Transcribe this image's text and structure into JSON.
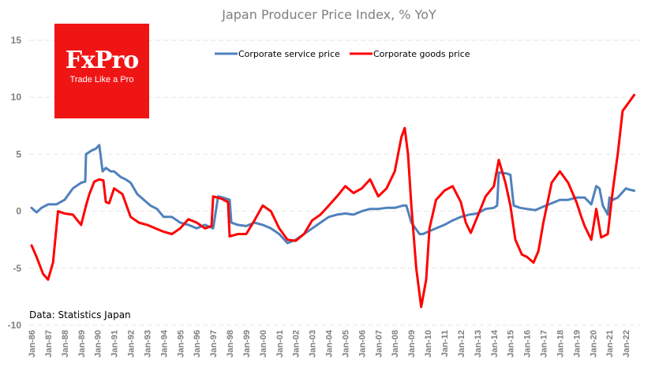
{
  "chart_data": {
    "type": "line",
    "title": "Japan Producer Price Index, % YoY",
    "xlabel": "",
    "ylabel": "",
    "ylim": [
      -10,
      15
    ],
    "yticks": [
      15,
      10,
      5,
      0,
      -5,
      -10
    ],
    "ytick_labels": [
      "15",
      "10",
      "5",
      "0",
      "-5",
      "-10"
    ],
    "xtick_labels": [
      "Jan-86",
      "Jan-87",
      "Jan-88",
      "Jan-89",
      "Jan-90",
      "Jan-91",
      "Jan-92",
      "Jan-93",
      "Jan-94",
      "Jan-95",
      "Jan-96",
      "Jan-97",
      "Jan-98",
      "Jan-99",
      "Jan-00",
      "Jan-01",
      "Jan-02",
      "Jan-03",
      "Jan-04",
      "Jan-05",
      "Jan-06",
      "Jan-07",
      "Jan-08",
      "Jan-09",
      "Jan-10",
      "Jan-11",
      "Jan-12",
      "Jan-13",
      "Jan-14",
      "Jan-15",
      "Jan-16",
      "Jan-17",
      "Jan-18",
      "Jan-19",
      "Jan-20",
      "Jan-21",
      "Jan-22"
    ],
    "xlim": [
      1986.0,
      2022.6
    ],
    "grid": true,
    "legend_position": "top-center",
    "source_note": "Data: Statistics Japan",
    "series": [
      {
        "name": "Corporate service price",
        "color": "#4f81bd",
        "x": [
          1986.0,
          1986.3,
          1986.6,
          1987.0,
          1987.5,
          1988.0,
          1988.5,
          1989.0,
          1989.25,
          1989.3,
          1989.6,
          1989.9,
          1990.1,
          1990.3,
          1990.5,
          1990.8,
          1991.0,
          1991.4,
          1991.7,
          1992.0,
          1992.4,
          1992.8,
          1993.2,
          1993.6,
          1994.0,
          1994.5,
          1995.0,
          1995.5,
          1996.0,
          1996.5,
          1997.0,
          1997.3,
          1997.6,
          1998.0,
          1998.1,
          1998.5,
          1999.0,
          1999.5,
          2000.0,
          2000.5,
          2001.0,
          2001.5,
          2002.0,
          2002.5,
          2003.0,
          2003.5,
          2004.0,
          2004.5,
          2005.0,
          2005.5,
          2006.0,
          2006.5,
          2007.0,
          2007.5,
          2008.0,
          2008.5,
          2008.7,
          2009.0,
          2009.5,
          2009.7,
          2010.0,
          2010.5,
          2011.0,
          2011.5,
          2012.0,
          2012.5,
          2013.0,
          2013.5,
          2014.0,
          2014.2,
          2014.3,
          2014.8,
          2015.0,
          2015.2,
          2015.6,
          2016.0,
          2016.5,
          2017.0,
          2017.5,
          2018.0,
          2018.5,
          2019.0,
          2019.5,
          2019.9,
          2020.2,
          2020.4,
          2020.6,
          2020.9,
          2021.0,
          2021.2,
          2021.5,
          2022.0,
          2022.2,
          2022.5
        ],
        "values": [
          0.3,
          -0.1,
          0.3,
          0.6,
          0.6,
          1.0,
          2.0,
          2.5,
          2.6,
          5.0,
          5.3,
          5.5,
          5.8,
          3.5,
          3.8,
          3.5,
          3.5,
          3.0,
          2.8,
          2.5,
          1.5,
          1.0,
          0.5,
          0.2,
          -0.5,
          -0.5,
          -1.0,
          -1.2,
          -1.5,
          -1.2,
          -1.5,
          1.3,
          1.2,
          1.0,
          -1.0,
          -1.2,
          -1.3,
          -1.0,
          -1.2,
          -1.5,
          -2.0,
          -2.8,
          -2.5,
          -2.0,
          -1.5,
          -1.0,
          -0.5,
          -0.3,
          -0.2,
          -0.3,
          0.0,
          0.2,
          0.2,
          0.3,
          0.3,
          0.5,
          0.5,
          -1.0,
          -2.0,
          -2.0,
          -1.8,
          -1.5,
          -1.2,
          -0.8,
          -0.5,
          -0.3,
          -0.2,
          0.2,
          0.3,
          0.5,
          3.4,
          3.3,
          3.2,
          0.5,
          0.3,
          0.2,
          0.1,
          0.4,
          0.7,
          1.0,
          1.0,
          1.2,
          1.2,
          0.6,
          2.2,
          2.0,
          0.5,
          -0.3,
          1.2,
          1.0,
          1.2,
          2.0,
          1.9,
          1.8
        ]
      },
      {
        "name": "Corporate goods price",
        "color": "#ff0000",
        "x": [
          1986.0,
          1986.3,
          1986.7,
          1987.0,
          1987.3,
          1987.6,
          1988.0,
          1988.5,
          1989.0,
          1989.3,
          1989.5,
          1989.8,
          1990.1,
          1990.35,
          1990.5,
          1990.7,
          1991.0,
          1991.5,
          1992.0,
          1992.5,
          1993.0,
          1993.5,
          1994.0,
          1994.5,
          1995.0,
          1995.5,
          1996.0,
          1996.5,
          1996.9,
          1997.0,
          1997.5,
          1997.9,
          1998.0,
          1998.5,
          1999.0,
          1999.5,
          2000.0,
          2000.5,
          2001.0,
          2001.5,
          2002.0,
          2002.5,
          2003.0,
          2003.5,
          2004.0,
          2004.5,
          2005.0,
          2005.5,
          2006.0,
          2006.5,
          2007.0,
          2007.5,
          2008.0,
          2008.4,
          2008.6,
          2008.8,
          2009.0,
          2009.3,
          2009.6,
          2009.9,
          2010.1,
          2010.5,
          2011.0,
          2011.5,
          2012.0,
          2012.3,
          2012.6,
          2013.0,
          2013.5,
          2014.0,
          2014.3,
          2014.7,
          2015.0,
          2015.3,
          2015.7,
          2016.0,
          2016.4,
          2016.7,
          2017.0,
          2017.5,
          2018.0,
          2018.5,
          2019.0,
          2019.3,
          2019.5,
          2019.9,
          2020.2,
          2020.5,
          2020.9,
          2021.2,
          2021.5,
          2021.8,
          2022.0,
          2022.2,
          2022.5
        ],
        "values": [
          -3.0,
          -4.0,
          -5.5,
          -6.0,
          -4.5,
          0.0,
          -0.2,
          -0.3,
          -1.2,
          0.5,
          1.5,
          2.6,
          2.8,
          2.7,
          0.8,
          0.7,
          2.0,
          1.5,
          -0.5,
          -1.0,
          -1.2,
          -1.5,
          -1.8,
          -2.0,
          -1.5,
          -0.7,
          -1.0,
          -1.5,
          -1.3,
          1.3,
          1.1,
          0.8,
          -2.2,
          -2.0,
          -2.0,
          -0.8,
          0.5,
          0.0,
          -1.5,
          -2.5,
          -2.6,
          -2.0,
          -0.8,
          -0.3,
          0.5,
          1.3,
          2.2,
          1.6,
          2.0,
          2.8,
          1.3,
          2.0,
          3.5,
          6.5,
          7.3,
          5.0,
          0.5,
          -5.0,
          -8.4,
          -6.0,
          -1.5,
          1.0,
          1.8,
          2.2,
          0.8,
          -1.0,
          -1.9,
          -0.5,
          1.3,
          2.2,
          4.5,
          2.5,
          0.5,
          -2.5,
          -3.8,
          -4.0,
          -4.5,
          -3.5,
          -1.0,
          2.5,
          3.5,
          2.5,
          0.8,
          -0.5,
          -1.3,
          -2.5,
          0.2,
          -2.3,
          -2.0,
          1.8,
          5.0,
          8.8,
          9.2,
          9.6,
          10.2
        ]
      }
    ]
  },
  "logo": {
    "brand": "FxPro",
    "tagline": "Trade Like a Pro"
  }
}
